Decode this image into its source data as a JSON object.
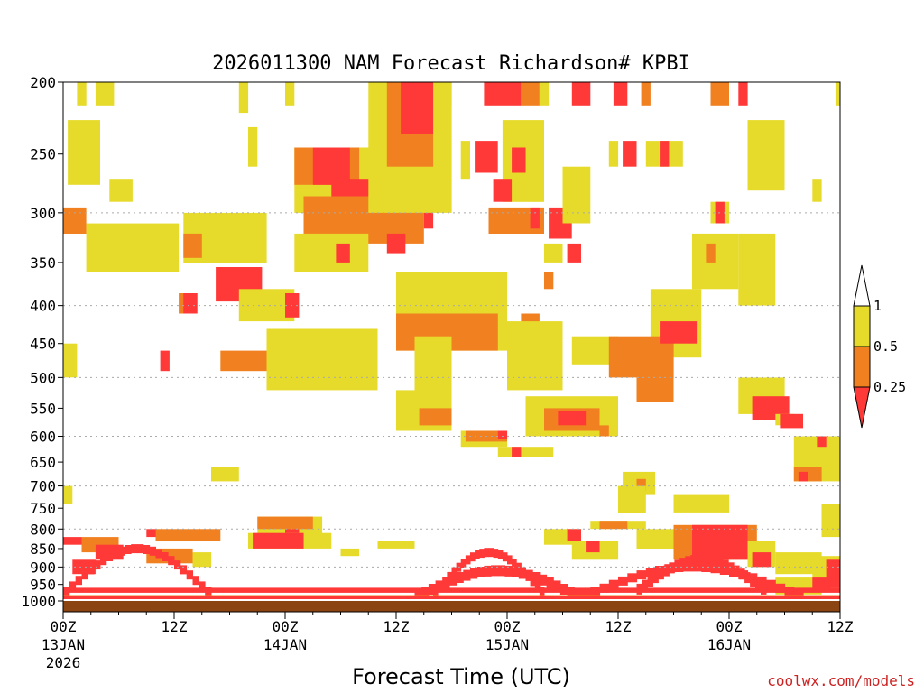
{
  "chart_data": {
    "type": "heatmap",
    "title": "2026011300 NAM Forecast Richardson# KPBI",
    "xlabel": "Forecast Time (UTC)",
    "ylabel": "",
    "credit": "coolwx.com/models",
    "y_scale": "log",
    "y_reversed": true,
    "ylim": [
      1000,
      200
    ],
    "xlim_hours": [
      0,
      84
    ],
    "y_ticks": [
      {
        "value": 200,
        "label": "200"
      },
      {
        "value": 250,
        "label": "250"
      },
      {
        "value": 300,
        "label": "300"
      },
      {
        "value": 350,
        "label": "350"
      },
      {
        "value": 400,
        "label": "400"
      },
      {
        "value": 450,
        "label": "450"
      },
      {
        "value": 500,
        "label": "500"
      },
      {
        "value": 550,
        "label": "550"
      },
      {
        "value": 600,
        "label": "600"
      },
      {
        "value": 650,
        "label": "650"
      },
      {
        "value": 700,
        "label": "700"
      },
      {
        "value": 750,
        "label": "750"
      },
      {
        "value": 800,
        "label": "800"
      },
      {
        "value": 850,
        "label": "850"
      },
      {
        "value": 900,
        "label": "900"
      },
      {
        "value": 950,
        "label": "950"
      },
      {
        "value": 1000,
        "label": "1000"
      }
    ],
    "grid_levels": [
      300,
      400,
      500,
      600,
      700,
      800,
      900
    ],
    "x_ticks": [
      {
        "hour": 0,
        "label": "00Z",
        "date": "13JAN",
        "year": "2026"
      },
      {
        "hour": 12,
        "label": "12Z",
        "date": "",
        "year": ""
      },
      {
        "hour": 24,
        "label": "00Z",
        "date": "14JAN",
        "year": ""
      },
      {
        "hour": 36,
        "label": "12Z",
        "date": "",
        "year": ""
      },
      {
        "hour": 48,
        "label": "00Z",
        "date": "15JAN",
        "year": ""
      },
      {
        "hour": 60,
        "label": "12Z",
        "date": "",
        "year": ""
      },
      {
        "hour": 72,
        "label": "00Z",
        "date": "16JAN",
        "year": ""
      },
      {
        "hour": 84,
        "label": "12Z",
        "date": "",
        "year": ""
      }
    ],
    "legend": [
      {
        "label": "1",
        "color": "#ffffff"
      },
      {
        "label": "0.5",
        "color": "#e6da2a"
      },
      {
        "label": "0.25",
        "color": "#f08020"
      },
      {
        "label": "",
        "color": "#ff3838"
      }
    ],
    "colors": {
      "yellow": "#e6da2a",
      "orange": "#f08020",
      "red": "#ff3838",
      "ground": "#8b4513"
    },
    "regions": [
      {
        "class": "yellow",
        "p1": 200,
        "p2": 215,
        "h1": 1.5,
        "h2": 2.5
      },
      {
        "class": "yellow",
        "p1": 200,
        "p2": 215,
        "h1": 3.5,
        "h2": 5.5
      },
      {
        "class": "yellow",
        "p1": 225,
        "p2": 275,
        "h1": 0.5,
        "h2": 4.0
      },
      {
        "class": "yellow",
        "p1": 270,
        "p2": 290,
        "h1": 5.0,
        "h2": 7.5
      },
      {
        "class": "orange",
        "p1": 295,
        "p2": 320,
        "h1": 0,
        "h2": 2.5
      },
      {
        "class": "yellow",
        "p1": 310,
        "p2": 360,
        "h1": 2.5,
        "h2": 12.5
      },
      {
        "class": "yellow",
        "p1": 300,
        "p2": 350,
        "h1": 13,
        "h2": 22
      },
      {
        "class": "orange",
        "p1": 320,
        "p2": 345,
        "h1": 13,
        "h2": 15
      },
      {
        "class": "red",
        "p1": 355,
        "p2": 395,
        "h1": 16.5,
        "h2": 21.5
      },
      {
        "class": "orange",
        "p1": 385,
        "p2": 410,
        "h1": 12.5,
        "h2": 14.5
      },
      {
        "class": "red",
        "p1": 385,
        "p2": 410,
        "h1": 13,
        "h2": 14.5
      },
      {
        "class": "yellow",
        "p1": 380,
        "p2": 420,
        "h1": 19,
        "h2": 25
      },
      {
        "class": "red",
        "p1": 385,
        "p2": 415,
        "h1": 24,
        "h2": 25.5
      },
      {
        "class": "yellow",
        "p1": 200,
        "p2": 220,
        "h1": 19,
        "h2": 20
      },
      {
        "class": "yellow",
        "p1": 200,
        "p2": 215,
        "h1": 24,
        "h2": 25
      },
      {
        "class": "yellow",
        "p1": 230,
        "p2": 260,
        "h1": 20,
        "h2": 21
      },
      {
        "class": "yellow",
        "p1": 245,
        "p2": 300,
        "h1": 25,
        "h2": 36
      },
      {
        "class": "orange",
        "p1": 245,
        "p2": 275,
        "h1": 25,
        "h2": 32
      },
      {
        "class": "red",
        "p1": 245,
        "p2": 275,
        "h1": 27,
        "h2": 31
      },
      {
        "class": "red",
        "p1": 270,
        "p2": 300,
        "h1": 29,
        "h2": 34
      },
      {
        "class": "orange",
        "p1": 285,
        "p2": 330,
        "h1": 26,
        "h2": 39
      },
      {
        "class": "yellow",
        "p1": 320,
        "p2": 360,
        "h1": 25,
        "h2": 33
      },
      {
        "class": "red",
        "p1": 330,
        "p2": 350,
        "h1": 29.5,
        "h2": 31
      },
      {
        "class": "red",
        "p1": 320,
        "p2": 340,
        "h1": 35,
        "h2": 37
      },
      {
        "class": "red",
        "p1": 295,
        "p2": 315,
        "h1": 39,
        "h2": 40
      },
      {
        "class": "yellow",
        "p1": 200,
        "p2": 300,
        "h1": 33,
        "h2": 42
      },
      {
        "class": "orange",
        "p1": 200,
        "p2": 260,
        "h1": 35,
        "h2": 40
      },
      {
        "class": "red",
        "p1": 200,
        "p2": 235,
        "h1": 36.5,
        "h2": 40
      },
      {
        "class": "yellow",
        "p1": 200,
        "p2": 215,
        "h1": 41,
        "h2": 42
      },
      {
        "class": "yellow",
        "p1": 240,
        "p2": 270,
        "h1": 43,
        "h2": 44
      },
      {
        "class": "red",
        "p1": 200,
        "p2": 215,
        "h1": 45.5,
        "h2": 49.5
      },
      {
        "class": "orange",
        "p1": 200,
        "p2": 215,
        "h1": 49.5,
        "h2": 51.5
      },
      {
        "class": "yellow",
        "p1": 200,
        "p2": 215,
        "h1": 51.5,
        "h2": 52.5
      },
      {
        "class": "red",
        "p1": 240,
        "p2": 265,
        "h1": 44.5,
        "h2": 47
      },
      {
        "class": "yellow",
        "p1": 225,
        "p2": 290,
        "h1": 47.5,
        "h2": 52
      },
      {
        "class": "red",
        "p1": 245,
        "p2": 265,
        "h1": 48.5,
        "h2": 50
      },
      {
        "class": "red",
        "p1": 270,
        "p2": 290,
        "h1": 46.5,
        "h2": 48.5
      },
      {
        "class": "orange",
        "p1": 295,
        "p2": 320,
        "h1": 46,
        "h2": 52
      },
      {
        "class": "red",
        "p1": 295,
        "p2": 315,
        "h1": 50.5,
        "h2": 51.5
      },
      {
        "class": "red",
        "p1": 295,
        "p2": 325,
        "h1": 52.5,
        "h2": 55
      },
      {
        "class": "yellow",
        "p1": 260,
        "p2": 310,
        "h1": 54,
        "h2": 57
      },
      {
        "class": "red",
        "p1": 200,
        "p2": 215,
        "h1": 55,
        "h2": 57
      },
      {
        "class": "red",
        "p1": 200,
        "p2": 215,
        "h1": 59.5,
        "h2": 61
      },
      {
        "class": "orange",
        "p1": 200,
        "p2": 215,
        "h1": 62.5,
        "h2": 63.5
      },
      {
        "class": "orange",
        "p1": 200,
        "p2": 215,
        "h1": 70,
        "h2": 72
      },
      {
        "class": "red",
        "p1": 200,
        "p2": 215,
        "h1": 73,
        "h2": 74
      },
      {
        "class": "yellow",
        "p1": 200,
        "p2": 215,
        "h1": 83.5,
        "h2": 84
      },
      {
        "class": "yellow",
        "p1": 240,
        "p2": 260,
        "h1": 59,
        "h2": 60
      },
      {
        "class": "red",
        "p1": 240,
        "p2": 260,
        "h1": 60.5,
        "h2": 62
      },
      {
        "class": "yellow",
        "p1": 240,
        "p2": 260,
        "h1": 63,
        "h2": 67
      },
      {
        "class": "red",
        "p1": 240,
        "p2": 260,
        "h1": 64.5,
        "h2": 65.5
      },
      {
        "class": "yellow",
        "p1": 225,
        "p2": 280,
        "h1": 74,
        "h2": 78
      },
      {
        "class": "yellow",
        "p1": 270,
        "p2": 290,
        "h1": 81,
        "h2": 82
      },
      {
        "class": "yellow",
        "p1": 290,
        "p2": 310,
        "h1": 70,
        "h2": 72
      },
      {
        "class": "red",
        "p1": 290,
        "p2": 310,
        "h1": 70.5,
        "h2": 71.5
      },
      {
        "class": "yellow",
        "p1": 320,
        "p2": 380,
        "h1": 68,
        "h2": 73
      },
      {
        "class": "orange",
        "p1": 330,
        "p2": 350,
        "h1": 69.5,
        "h2": 70.5
      },
      {
        "class": "red",
        "p1": 330,
        "p2": 350,
        "h1": 74.5,
        "h2": 75.5
      },
      {
        "class": "yellow",
        "p1": 320,
        "p2": 400,
        "h1": 73,
        "h2": 77
      },
      {
        "class": "yellow",
        "p1": 330,
        "p2": 350,
        "h1": 52,
        "h2": 54
      },
      {
        "class": "red",
        "p1": 330,
        "p2": 350,
        "h1": 54.5,
        "h2": 56
      },
      {
        "class": "orange",
        "p1": 360,
        "p2": 380,
        "h1": 52,
        "h2": 53
      },
      {
        "class": "yellow",
        "p1": 360,
        "p2": 460,
        "h1": 36,
        "h2": 48
      },
      {
        "class": "orange",
        "p1": 410,
        "p2": 460,
        "h1": 36,
        "h2": 47
      },
      {
        "class": "orange",
        "p1": 410,
        "p2": 450,
        "h1": 49.5,
        "h2": 51.5
      },
      {
        "class": "yellow",
        "p1": 420,
        "p2": 520,
        "h1": 48,
        "h2": 54
      },
      {
        "class": "yellow",
        "p1": 440,
        "p2": 480,
        "h1": 55,
        "h2": 60
      },
      {
        "class": "yellow",
        "p1": 380,
        "p2": 470,
        "h1": 63.5,
        "h2": 69
      },
      {
        "class": "orange",
        "p1": 440,
        "p2": 500,
        "h1": 59,
        "h2": 66
      },
      {
        "class": "red",
        "p1": 420,
        "p2": 450,
        "h1": 64.5,
        "h2": 68.5
      },
      {
        "class": "orange",
        "p1": 490,
        "p2": 540,
        "h1": 62,
        "h2": 66
      },
      {
        "class": "yellow",
        "p1": 440,
        "p2": 530,
        "h1": 38,
        "h2": 42
      },
      {
        "class": "orange",
        "p1": 460,
        "p2": 490,
        "h1": 17,
        "h2": 28
      },
      {
        "class": "red",
        "p1": 440,
        "p2": 470,
        "h1": 28,
        "h2": 30
      },
      {
        "class": "red",
        "p1": 460,
        "p2": 490,
        "h1": 29,
        "h2": 31
      },
      {
        "class": "yellow",
        "p1": 430,
        "p2": 520,
        "h1": 22,
        "h2": 34
      },
      {
        "class": "red",
        "p1": 460,
        "p2": 490,
        "h1": 10.5,
        "h2": 11.5
      },
      {
        "class": "yellow",
        "p1": 450,
        "p2": 500,
        "h1": 0,
        "h2": 1.5
      },
      {
        "class": "yellow",
        "p1": 520,
        "p2": 590,
        "h1": 36,
        "h2": 42
      },
      {
        "class": "orange",
        "p1": 550,
        "p2": 580,
        "h1": 38.5,
        "h2": 42
      },
      {
        "class": "yellow",
        "p1": 590,
        "p2": 620,
        "h1": 43,
        "h2": 48
      },
      {
        "class": "orange",
        "p1": 590,
        "p2": 610,
        "h1": 43.5,
        "h2": 48
      },
      {
        "class": "red",
        "p1": 590,
        "p2": 605,
        "h1": 47,
        "h2": 48
      },
      {
        "class": "yellow",
        "p1": 530,
        "p2": 600,
        "h1": 50,
        "h2": 60
      },
      {
        "class": "orange",
        "p1": 550,
        "p2": 590,
        "h1": 52,
        "h2": 58
      },
      {
        "class": "red",
        "p1": 555,
        "p2": 580,
        "h1": 53.5,
        "h2": 56.5
      },
      {
        "class": "orange",
        "p1": 580,
        "p2": 600,
        "h1": 58,
        "h2": 59
      },
      {
        "class": "yellow",
        "p1": 620,
        "p2": 640,
        "h1": 47,
        "h2": 53
      },
      {
        "class": "red",
        "p1": 620,
        "p2": 640,
        "h1": 48.5,
        "h2": 49.5
      },
      {
        "class": "yellow",
        "p1": 500,
        "p2": 560,
        "h1": 73,
        "h2": 78
      },
      {
        "class": "red",
        "p1": 530,
        "p2": 570,
        "h1": 74.5,
        "h2": 78.5
      },
      {
        "class": "yellow",
        "p1": 560,
        "p2": 580,
        "h1": 77,
        "h2": 79
      },
      {
        "class": "red",
        "p1": 560,
        "p2": 585,
        "h1": 77.5,
        "h2": 80
      },
      {
        "class": "yellow",
        "p1": 600,
        "p2": 690,
        "h1": 79,
        "h2": 84
      },
      {
        "class": "red",
        "p1": 600,
        "p2": 620,
        "h1": 81.5,
        "h2": 82.5
      },
      {
        "class": "orange",
        "p1": 660,
        "p2": 690,
        "h1": 79,
        "h2": 82
      },
      {
        "class": "red",
        "p1": 670,
        "p2": 690,
        "h1": 79.5,
        "h2": 80.5
      },
      {
        "class": "yellow",
        "p1": 660,
        "p2": 690,
        "h1": 16,
        "h2": 19
      },
      {
        "class": "yellow",
        "p1": 670,
        "p2": 720,
        "h1": 60.5,
        "h2": 64
      },
      {
        "class": "orange",
        "p1": 685,
        "p2": 710,
        "h1": 62,
        "h2": 63
      },
      {
        "class": "yellow",
        "p1": 700,
        "p2": 760,
        "h1": 60,
        "h2": 63
      },
      {
        "class": "yellow",
        "p1": 740,
        "p2": 820,
        "h1": 82,
        "h2": 84
      },
      {
        "class": "yellow",
        "p1": 720,
        "p2": 760,
        "h1": 66,
        "h2": 72
      },
      {
        "class": "yellow",
        "p1": 700,
        "p2": 740,
        "h1": 0,
        "h2": 1
      },
      {
        "class": "yellow",
        "p1": 770,
        "p2": 820,
        "h1": 21,
        "h2": 28
      },
      {
        "class": "orange",
        "p1": 770,
        "p2": 800,
        "h1": 21,
        "h2": 27
      },
      {
        "class": "red",
        "p1": 800,
        "p2": 820,
        "h1": 24,
        "h2": 25.5
      },
      {
        "class": "orange",
        "p1": 800,
        "p2": 830,
        "h1": 10,
        "h2": 17
      },
      {
        "class": "yellow",
        "p1": 810,
        "p2": 850,
        "h1": 20,
        "h2": 29
      },
      {
        "class": "red",
        "p1": 810,
        "p2": 850,
        "h1": 20.5,
        "h2": 26
      },
      {
        "class": "orange",
        "p1": 820,
        "p2": 860,
        "h1": 2,
        "h2": 6
      },
      {
        "class": "red",
        "p1": 820,
        "p2": 840,
        "h1": 0,
        "h2": 2
      },
      {
        "class": "red",
        "p1": 800,
        "p2": 820,
        "h1": 9,
        "h2": 10
      },
      {
        "class": "red",
        "p1": 840,
        "p2": 880,
        "h1": 3.5,
        "h2": 6.5
      },
      {
        "class": "orange",
        "p1": 850,
        "p2": 890,
        "h1": 9,
        "h2": 14
      },
      {
        "class": "yellow",
        "p1": 860,
        "p2": 900,
        "h1": 14,
        "h2": 16
      },
      {
        "class": "red",
        "p1": 880,
        "p2": 920,
        "h1": 1,
        "h2": 3.5
      },
      {
        "class": "yellow",
        "p1": 850,
        "p2": 870,
        "h1": 30,
        "h2": 32
      },
      {
        "class": "yellow",
        "p1": 830,
        "p2": 850,
        "h1": 34,
        "h2": 38
      },
      {
        "class": "yellow",
        "p1": 780,
        "p2": 800,
        "h1": 57,
        "h2": 63
      },
      {
        "class": "orange",
        "p1": 780,
        "p2": 800,
        "h1": 58,
        "h2": 61
      },
      {
        "class": "yellow",
        "p1": 800,
        "p2": 840,
        "h1": 52,
        "h2": 56
      },
      {
        "class": "red",
        "p1": 800,
        "p2": 830,
        "h1": 54.5,
        "h2": 56
      },
      {
        "class": "yellow",
        "p1": 830,
        "p2": 880,
        "h1": 55,
        "h2": 60
      },
      {
        "class": "red",
        "p1": 830,
        "p2": 860,
        "h1": 56.5,
        "h2": 58
      },
      {
        "class": "yellow",
        "p1": 800,
        "p2": 850,
        "h1": 62,
        "h2": 67
      },
      {
        "class": "red",
        "p1": 810,
        "p2": 850,
        "h1": 66.5,
        "h2": 69
      },
      {
        "class": "orange",
        "p1": 790,
        "p2": 880,
        "h1": 66,
        "h2": 75
      },
      {
        "class": "red",
        "p1": 790,
        "p2": 880,
        "h1": 68,
        "h2": 74
      },
      {
        "class": "yellow",
        "p1": 830,
        "p2": 900,
        "h1": 74,
        "h2": 77
      },
      {
        "class": "red",
        "p1": 860,
        "p2": 900,
        "h1": 74.5,
        "h2": 76.5
      },
      {
        "class": "yellow",
        "p1": 860,
        "p2": 920,
        "h1": 77,
        "h2": 82
      },
      {
        "class": "yellow",
        "p1": 870,
        "p2": 960,
        "h1": 81,
        "h2": 84
      },
      {
        "class": "red",
        "p1": 880,
        "p2": 960,
        "h1": 82.5,
        "h2": 84
      },
      {
        "class": "yellow",
        "p1": 930,
        "p2": 980,
        "h1": 77,
        "h2": 82
      },
      {
        "class": "red",
        "p1": 930,
        "p2": 970,
        "h1": 81,
        "h2": 83
      }
    ],
    "arches": [
      {
        "class": "red",
        "h1": 40,
        "h2": 52,
        "p_base": 980,
        "p_top": 860,
        "thick": 10
      },
      {
        "class": "red",
        "h1": 38,
        "h2": 56,
        "p_base": 990,
        "p_top": 910,
        "thick": 12
      },
      {
        "class": "red",
        "h1": 56,
        "h2": 80,
        "p_base": 990,
        "p_top": 900,
        "thick": 10
      },
      {
        "class": "red",
        "h1": 62,
        "h2": 76,
        "p_base": 970,
        "p_top": 880,
        "thick": 12
      },
      {
        "class": "red",
        "h1": 0,
        "h2": 16,
        "p_base": 980,
        "p_top": 850,
        "thick": 10
      }
    ],
    "bands": [
      {
        "class": "orange",
        "p1": 982,
        "p2": 1002
      },
      {
        "class": "red",
        "p1": 985,
        "p2": 1008
      },
      {
        "class": "red",
        "p1": 960,
        "p2": 975
      }
    ]
  }
}
